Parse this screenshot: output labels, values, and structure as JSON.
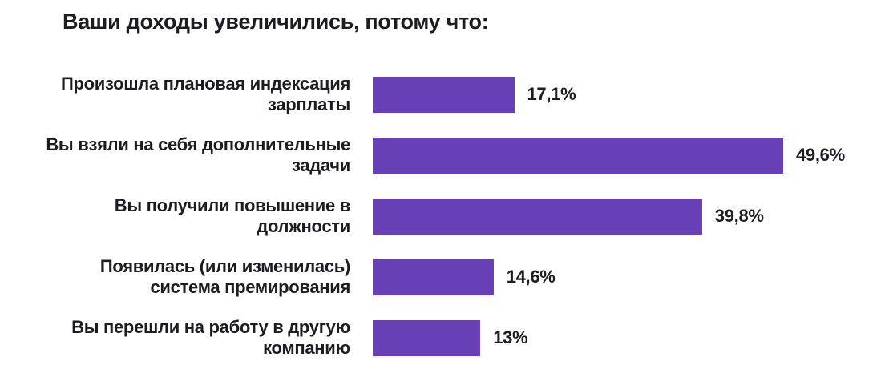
{
  "chart_data": {
    "type": "bar",
    "orientation": "horizontal",
    "title": "Ваши доходы увеличились, потому что:",
    "categories": [
      "Произошла плановая индексация зарплаты",
      "Вы взяли на себя дополнительные задачи",
      "Вы получили повышение в должности",
      "Появилась (или изменилась) система премирования",
      "Вы перешли на работу в другую компанию"
    ],
    "values": [
      17.1,
      49.6,
      39.8,
      14.6,
      13
    ],
    "value_labels": [
      "17,1%",
      "49,6%",
      "39,8%",
      "14,6%",
      "13%"
    ],
    "xlabel": "",
    "ylabel": "",
    "xlim": [
      0,
      55
    ],
    "grid": false,
    "legend_position": "none",
    "bar_color": "#6640B4",
    "text_color": "#1E1C21",
    "background_color": "#FFFFFF"
  }
}
